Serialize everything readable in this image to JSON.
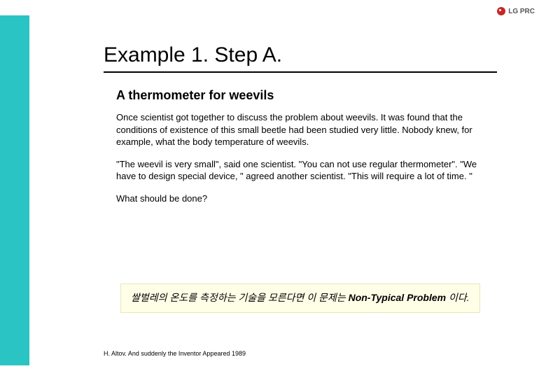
{
  "logo": {
    "text": "LG PRC"
  },
  "title": "Example 1. Step A.",
  "subtitle": "A thermometer for weevils",
  "paragraphs": [
    "Once scientist got together to discuss the problem about weevils. It was found that the conditions of existence of this small beetle had been studied very little. Nobody knew, for example, what the body temperature of weevils.",
    "\"The weevil is very small\", said one scientist. \"You can not use regular thermometer\". \"We have to design special device, \" agreed another scientist. \"This will require a lot of time. \"",
    "What should be done?"
  ],
  "callout": {
    "korean_prefix": "쌀벌레의 온도를 측정하는 기술을 모른다면 이 문제는 ",
    "bold": "Non-Typical Problem",
    "korean_suffix": " 이다."
  },
  "citation": "H. Altov. And suddenly the Inventor Appeared 1989",
  "colors": {
    "teal": "#2ac4c4",
    "callout_bg": "#ffffe8",
    "callout_border": "#e6e6b8",
    "logo_red": "#c62828"
  }
}
